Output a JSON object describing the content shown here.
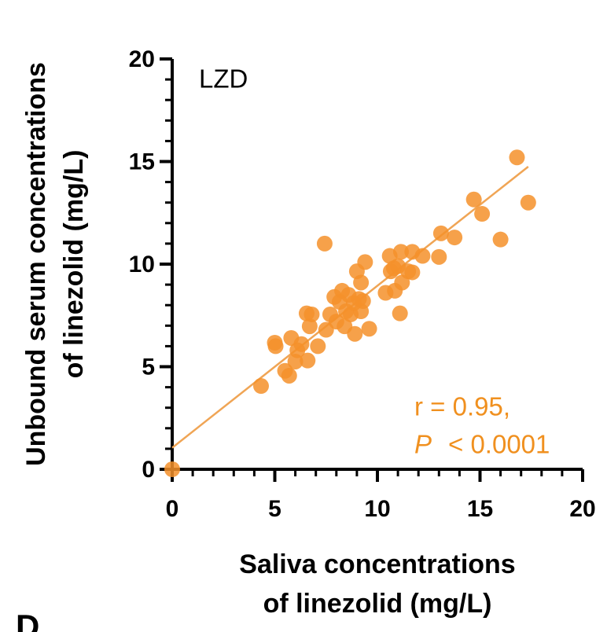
{
  "chart_data": {
    "type": "scatter",
    "panel_label": "D",
    "annotations": [
      "LZD",
      "r = 0.95,",
      "P",
      "< 0.0001"
    ],
    "x_label": [
      "Saliva concentrations",
      "of linezolid (mg/L)"
    ],
    "y_label": [
      "Unbound serum concentrations",
      "of linezolid (mg/L)"
    ],
    "xlim": [
      0,
      20
    ],
    "ylim": [
      0,
      20
    ],
    "xticks": [
      0,
      5,
      10,
      15,
      20
    ],
    "yticks": [
      0,
      5,
      10,
      15,
      20
    ],
    "color": "#f5902a",
    "x": [
      0,
      4.33,
      5.0,
      5.04,
      5.5,
      5.7,
      5.8,
      6.0,
      6.1,
      6.3,
      6.55,
      6.6,
      6.7,
      6.8,
      7.1,
      7.43,
      7.5,
      7.7,
      7.9,
      8.0,
      8.16,
      8.28,
      8.4,
      8.47,
      8.6,
      8.7,
      8.85,
      8.9,
      9.0,
      9.1,
      9.2,
      9.2,
      9.3,
      9.4,
      9.6,
      10.4,
      10.6,
      10.65,
      10.8,
      10.85,
      11.0,
      11.1,
      11.15,
      11.2,
      11.5,
      11.7,
      11.7,
      12.2,
      13.0,
      13.1,
      13.76,
      14.7,
      15.1,
      16.0,
      16.8,
      17.35
    ],
    "y": [
      0,
      4.06,
      6.17,
      6.0,
      4.8,
      4.56,
      6.4,
      5.25,
      5.8,
      6.1,
      7.6,
      5.3,
      6.97,
      7.55,
      6.0,
      11.0,
      6.8,
      7.55,
      8.4,
      7.2,
      8.16,
      8.7,
      6.97,
      7.7,
      8.5,
      7.55,
      8.1,
      6.6,
      9.65,
      8.3,
      7.7,
      9.1,
      8.2,
      10.1,
      6.85,
      8.6,
      10.4,
      9.65,
      9.8,
      8.7,
      9.9,
      7.6,
      10.6,
      9.1,
      9.65,
      9.6,
      10.6,
      10.4,
      10.35,
      11.5,
      11.3,
      13.15,
      12.45,
      11.2,
      15.2,
      13.0
    ],
    "fit_line": {
      "x": [
        0,
        17.35
      ],
      "y": [
        1.05,
        14.75
      ],
      "color": "#f0a555"
    }
  }
}
